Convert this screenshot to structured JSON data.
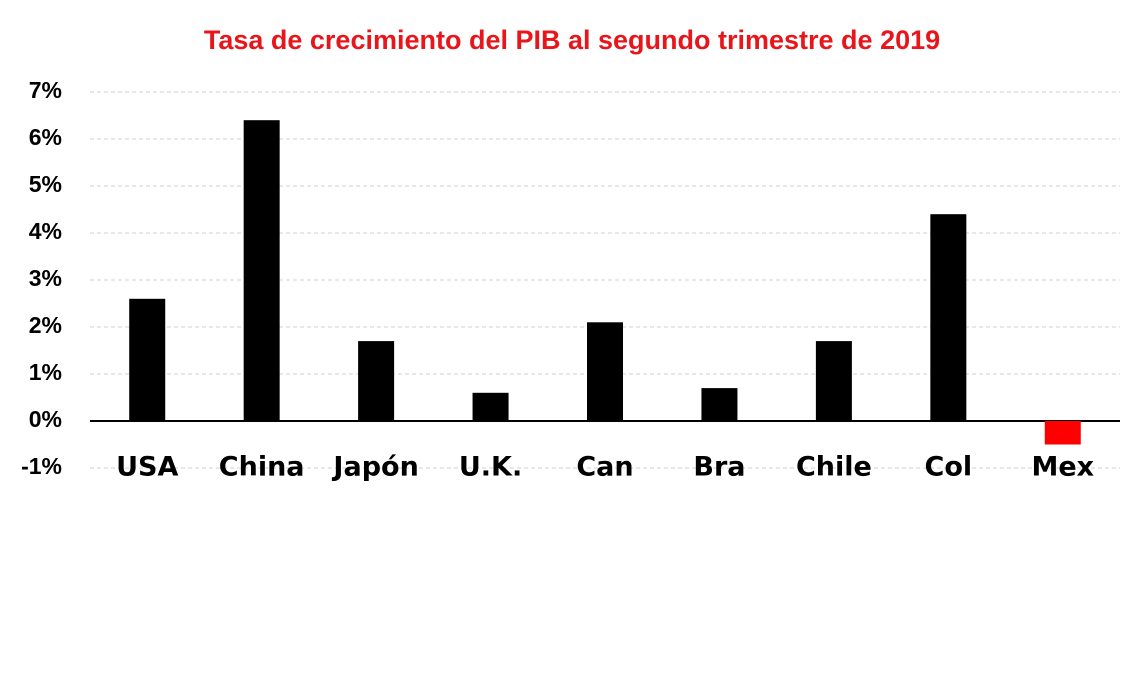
{
  "chart_data": {
    "type": "bar",
    "title": "Tasa de crecimiento del PIB al segundo trimestre de 2019",
    "categories": [
      "USA",
      "China",
      "Japón",
      "U.K.",
      "Can",
      "Bra",
      "Chile",
      "Col",
      "Mex"
    ],
    "values": [
      2.6,
      6.4,
      1.7,
      0.6,
      2.1,
      0.7,
      1.7,
      4.4,
      -0.5
    ],
    "colors": [
      "#000000",
      "#000000",
      "#000000",
      "#000000",
      "#000000",
      "#000000",
      "#000000",
      "#000000",
      "#ff0000"
    ],
    "ylim": [
      -1,
      7
    ],
    "yticks": [
      {
        "value": -1,
        "label": "-1%"
      },
      {
        "value": 0,
        "label": "0%"
      },
      {
        "value": 1,
        "label": "1%"
      },
      {
        "value": 2,
        "label": "2%"
      },
      {
        "value": 3,
        "label": "3%"
      },
      {
        "value": 4,
        "label": "4%"
      },
      {
        "value": 5,
        "label": "5%"
      },
      {
        "value": 6,
        "label": "6%"
      },
      {
        "value": 7,
        "label": "7%"
      }
    ],
    "grid": true
  }
}
